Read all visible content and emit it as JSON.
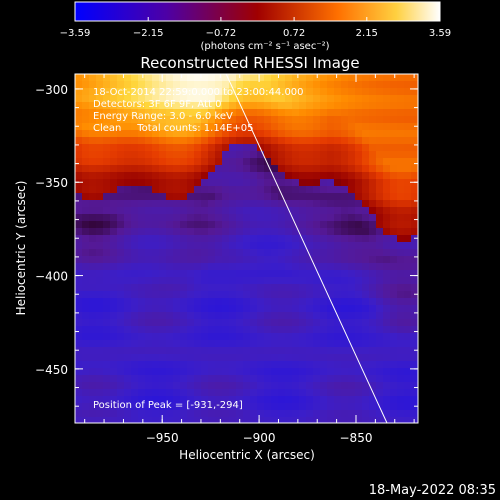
{
  "footer": {
    "date": "18-May-2022 08:35"
  },
  "colors": {
    "background": "#000000",
    "axis": "#ffffff",
    "limb": "#ffffff"
  },
  "chart_data": {
    "type": "heatmap",
    "title": "Reconstructed RHESSI Image",
    "xlabel": "Heliocentric X (arcsec)",
    "ylabel": "Heliocentric Y (arcsec)",
    "xlim": [
      -995,
      -818
    ],
    "ylim": [
      -479,
      -292
    ],
    "xticks": [
      {
        "value": -950,
        "label": "−950"
      },
      {
        "value": -900,
        "label": "−900"
      },
      {
        "value": -850,
        "label": "−850"
      }
    ],
    "yticks": [
      {
        "value": -300,
        "label": "−300"
      },
      {
        "value": -350,
        "label": "−350"
      },
      {
        "value": -400,
        "label": "−400"
      },
      {
        "value": -450,
        "label": "−450"
      }
    ],
    "colorbar": {
      "min": -3.59,
      "max": 3.59,
      "ticks": [
        {
          "value": -3.59,
          "label": "−3.59"
        },
        {
          "value": -2.15,
          "label": "−2.15"
        },
        {
          "value": -0.72,
          "label": "−0.72"
        },
        {
          "value": 0.72,
          "label": "0.72"
        },
        {
          "value": 2.15,
          "label": "2.15"
        },
        {
          "value": 3.59,
          "label": "3.59"
        }
      ],
      "unit_label": "(photons cm⁻² s⁻¹ asec⁻²)",
      "colormap": [
        "#0000ff",
        "#4d00a6",
        "#a00000",
        "#ff7000",
        "#ffd040",
        "#ffffff"
      ]
    },
    "annotations": [
      "18-Oct-2014 22:59:0.000 to 23:00:44.000",
      "Detectors: 3F 6F 9F, Att 0",
      "Energy Range: 3.0 - 6.0 keV",
      "Clean     Total counts: 1.14E+05"
    ],
    "peak_label": "Position of Peak = [-931,-294]",
    "peak": {
      "x": -931,
      "y": -294
    },
    "limb": [
      {
        "x": -917,
        "y": -292
      },
      {
        "x": -834,
        "y": -479
      }
    ]
  }
}
